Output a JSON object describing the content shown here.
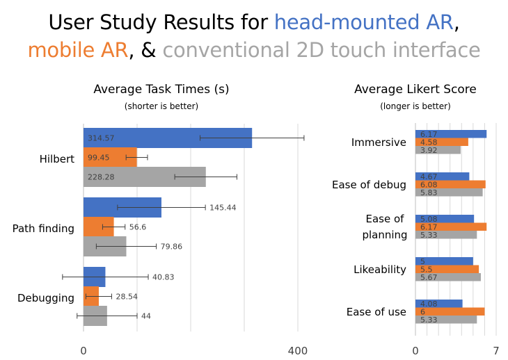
{
  "title": {
    "line1_prefix": "User Study Results for ",
    "line1_blue": "head-mounted AR",
    "line1_suffix": ",",
    "line2_orange": "mobile AR",
    "line2_mid": ", & ",
    "line2_gray": "conventional 2D touch interface"
  },
  "colors": {
    "blue": "#4472C4",
    "orange": "#ED7D31",
    "gray": "#A5A5A5"
  },
  "chart_data": [
    {
      "type": "bar",
      "orientation": "horizontal",
      "title": "Average Task Times (s)",
      "subtitle": "(shorter is better)",
      "categories": [
        "Hilbert",
        "Path finding",
        "Debugging"
      ],
      "series": [
        {
          "values": [
            314.57,
            145.44,
            40.83
          ],
          "errors": [
            97,
            82,
            80
          ]
        },
        {
          "values": [
            99.45,
            56.6,
            28.54
          ],
          "errors": [
            20,
            21,
            24
          ]
        },
        {
          "values": [
            228.28,
            79.86,
            44
          ],
          "errors": [
            58,
            56,
            56
          ]
        }
      ],
      "xlim": [
        0,
        400
      ],
      "xticks": [
        0,
        400
      ],
      "grid": true
    },
    {
      "type": "bar",
      "orientation": "horizontal",
      "title": "Average Likert Score",
      "subtitle": "(longer is better)",
      "categories": [
        "Immersive",
        "Ease of debug",
        "Ease of planning",
        "Likeability",
        "Ease of use"
      ],
      "series": [
        {
          "values": [
            6.17,
            4.67,
            5.08,
            5,
            4.08
          ]
        },
        {
          "values": [
            4.58,
            6.08,
            6.17,
            5.5,
            6
          ]
        },
        {
          "values": [
            3.92,
            5.83,
            5.33,
            5.67,
            5.33
          ]
        }
      ],
      "xlim": [
        0,
        7
      ],
      "xticks": [
        0,
        7
      ],
      "grid": true
    }
  ]
}
